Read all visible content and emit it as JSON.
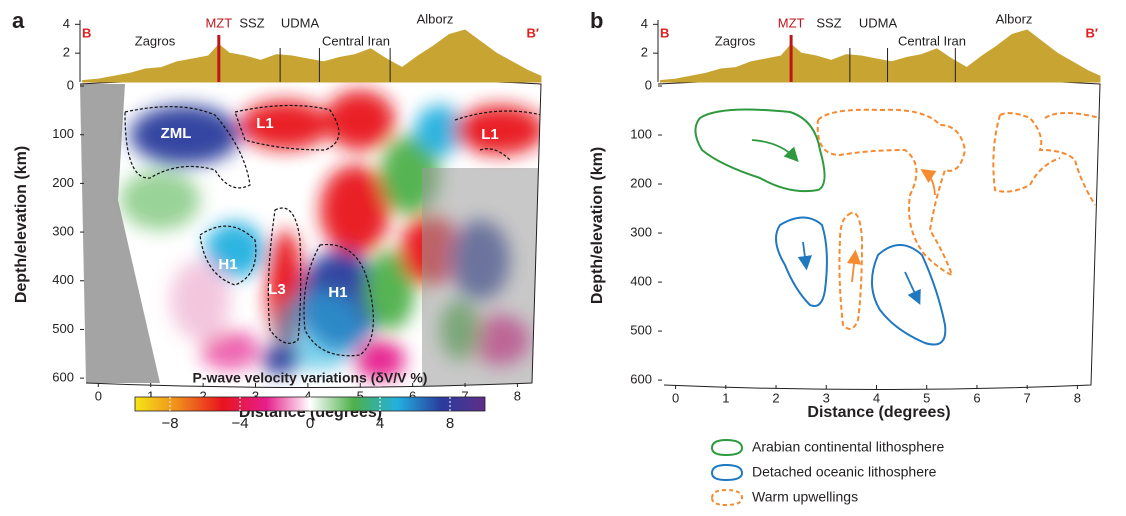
{
  "chart_data": [
    {
      "type": "tomography",
      "panel_label": "a",
      "xlabel": "Distance (degrees)",
      "ylabel": "Depth/elevation (km)",
      "xlim": [
        -0.35,
        8.45
      ],
      "ylim": [
        0,
        610
      ],
      "invert_y": true,
      "xticks": [
        0,
        1,
        2,
        3,
        4,
        5,
        6,
        7,
        8
      ],
      "yticks": [
        0,
        100,
        200,
        300,
        400,
        500,
        600
      ],
      "elevation_lim": [
        0,
        4.3
      ],
      "elevation_ticks": [
        2,
        4
      ],
      "profile_ends": [
        "B",
        "B′"
      ],
      "provinces": [
        "Zagros",
        "SSZ",
        "UDMA",
        "Central Iran",
        "Alborz"
      ],
      "suture": "MZT",
      "suture_color": "#c0141c",
      "boundaries": [
        2.3,
        3.47,
        4.22,
        5.57
      ],
      "topography": {
        "color": "#c8a533",
        "x": [
          -0.3,
          0,
          0.3,
          0.6,
          0.9,
          1.2,
          1.5,
          1.8,
          2.1,
          2.3,
          2.5,
          2.8,
          3.1,
          3.4,
          3.7,
          4.0,
          4.3,
          4.6,
          4.9,
          5.2,
          5.5,
          5.8,
          6.1,
          6.4,
          6.7,
          7.0,
          7.3,
          7.6,
          7.9,
          8.2,
          8.45
        ],
        "values": [
          0.1,
          0.2,
          0.4,
          0.6,
          0.9,
          1.0,
          1.4,
          1.6,
          1.8,
          2.6,
          2.0,
          1.8,
          1.5,
          1.9,
          1.8,
          1.6,
          1.4,
          1.7,
          1.9,
          2.3,
          1.6,
          1.0,
          1.8,
          2.5,
          3.3,
          3.6,
          2.8,
          2.0,
          1.4,
          0.8,
          0.4
        ]
      },
      "anomalies": [
        "ZML",
        "L1",
        "H1",
        "L3",
        "H1",
        "L1"
      ],
      "colorbar": {
        "title": "P-wave velocity variations (δV/V %)",
        "lim": [
          -10,
          10
        ],
        "ticks": [
          {
            "value": -8,
            "label": "−8"
          },
          {
            "value": -4,
            "label": "−4"
          },
          0,
          4,
          8
        ],
        "colors": [
          "#f5e616",
          "#f08a1c",
          "#e8141c",
          "#e61e8c",
          "#ffffff",
          "#4db04a",
          "#22b0e0",
          "#2a3c9c",
          "#5e2f8a"
        ]
      }
    },
    {
      "type": "interpretation",
      "panel_label": "b",
      "xlabel": "Distance (degrees)",
      "ylabel": "Depth/elevation (km)",
      "xlim": [
        -0.35,
        8.45
      ],
      "ylim": [
        0,
        610
      ],
      "invert_y": true,
      "xticks": [
        0,
        1,
        2,
        3,
        4,
        5,
        6,
        7,
        8
      ],
      "yticks": [
        0,
        100,
        200,
        300,
        400,
        500,
        600
      ],
      "elevation_lim": [
        0,
        4.3
      ],
      "elevation_ticks": [
        2,
        4
      ],
      "profile_ends": [
        "B",
        "B′"
      ],
      "provinces": [
        "Zagros",
        "SSZ",
        "UDMA",
        "Central Iran",
        "Alborz"
      ],
      "suture": "MZT",
      "suture_color": "#c0141c",
      "boundaries": [
        2.3,
        3.47,
        4.22,
        5.57
      ],
      "topography": {
        "color": "#c8a533",
        "x": [
          -0.3,
          0,
          0.3,
          0.6,
          0.9,
          1.2,
          1.5,
          1.8,
          2.1,
          2.3,
          2.5,
          2.8,
          3.1,
          3.4,
          3.7,
          4.0,
          4.3,
          4.6,
          4.9,
          5.2,
          5.5,
          5.8,
          6.1,
          6.4,
          6.7,
          7.0,
          7.3,
          7.6,
          7.9,
          8.2,
          8.45
        ],
        "values": [
          0.1,
          0.2,
          0.4,
          0.6,
          0.9,
          1.0,
          1.4,
          1.6,
          1.8,
          2.6,
          2.0,
          1.8,
          1.5,
          1.9,
          1.8,
          1.6,
          1.4,
          1.7,
          1.9,
          2.3,
          1.6,
          1.0,
          1.8,
          2.5,
          3.3,
          3.6,
          2.8,
          2.0,
          1.4,
          0.8,
          0.4
        ]
      },
      "legend": [
        {
          "name": "Arabian continental lithosphere",
          "color": "#2e9a3e",
          "style": "solid"
        },
        {
          "name": "Detached oceanic lithosphere",
          "color": "#1f78c0",
          "style": "solid"
        },
        {
          "name": "Warm upwellings",
          "color": "#f58a2f",
          "style": "dashed"
        }
      ]
    }
  ]
}
